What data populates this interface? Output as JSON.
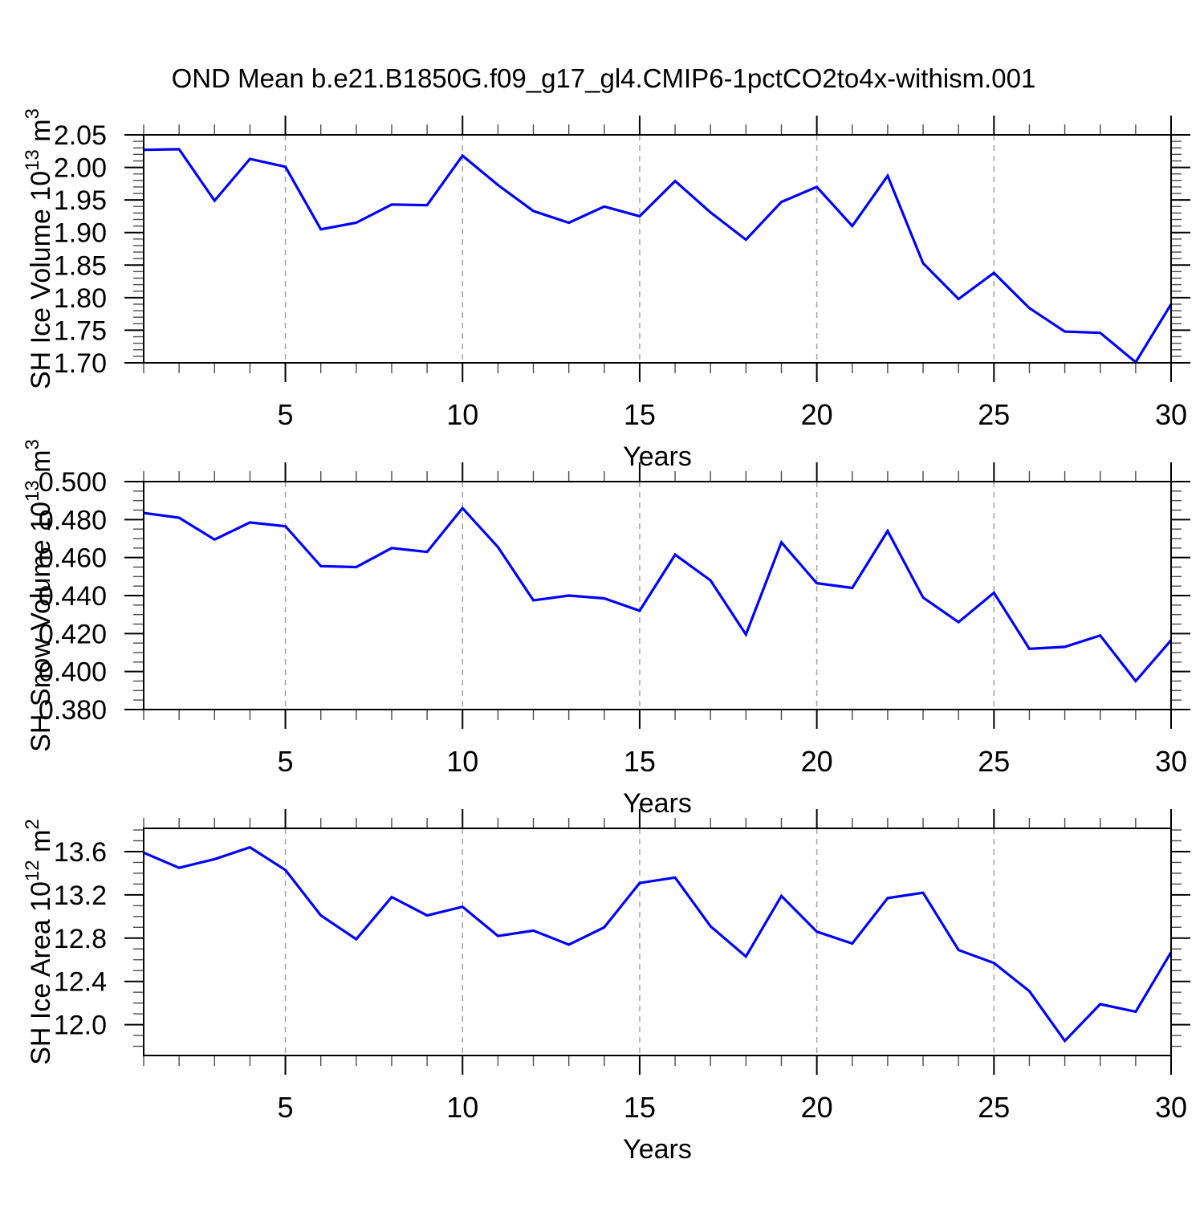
{
  "title": "OND Mean b.e21.B1850G.f09_g17_gl4.CMIP6-1pctCO2to4x-withism.001",
  "line_color": "#0000ff",
  "grid_color": "#a3a3a3",
  "axis_color": "#000000",
  "chart_data": [
    {
      "type": "line",
      "ylabel_parts": [
        {
          "t": "SH Ice Volume 10"
        },
        {
          "t": "13",
          "sup": true
        },
        {
          "t": " m"
        },
        {
          "t": "3",
          "sup": true
        }
      ],
      "xlabel": "Years",
      "xlim": [
        1,
        30
      ],
      "x": {
        "start": 1,
        "end": 30,
        "step": 1
      },
      "xticks_major": [
        5,
        10,
        15,
        20,
        25,
        30
      ],
      "xtick_labels": [
        "5",
        "10",
        "15",
        "20",
        "25",
        "30"
      ],
      "grid_x": [
        5,
        10,
        15,
        20,
        25
      ],
      "ylim": [
        1.7,
        2.05
      ],
      "ytick_values": [
        1.7,
        1.75,
        1.8,
        1.85,
        1.9,
        1.95,
        2.0,
        2.05
      ],
      "ytick_labels": [
        "1.70",
        "1.75",
        "1.80",
        "1.85",
        "1.90",
        "1.95",
        "2.00",
        "2.05"
      ],
      "y_minor_step": 0.01,
      "values": [
        2.027,
        2.028,
        1.949,
        2.013,
        2.001,
        1.905,
        1.915,
        1.943,
        1.942,
        2.018,
        1.973,
        1.933,
        1.915,
        1.94,
        1.925,
        1.979,
        1.931,
        1.889,
        1.947,
        1.97,
        1.91,
        1.987,
        1.853,
        1.798,
        1.838,
        1.784,
        1.748,
        1.746,
        1.701,
        1.79
      ]
    },
    {
      "type": "line",
      "ylabel_parts": [
        {
          "t": "SH Snow Volume 10"
        },
        {
          "t": "13",
          "sup": true
        },
        {
          "t": " m"
        },
        {
          "t": "3",
          "sup": true
        }
      ],
      "xlabel": "Years",
      "xlim": [
        1,
        30
      ],
      "x": {
        "start": 1,
        "end": 30,
        "step": 1
      },
      "xticks_major": [
        5,
        10,
        15,
        20,
        25,
        30
      ],
      "xtick_labels": [
        "5",
        "10",
        "15",
        "20",
        "25",
        "30"
      ],
      "grid_x": [
        5,
        10,
        15,
        20,
        25
      ],
      "ylim": [
        0.38,
        0.5
      ],
      "ytick_values": [
        0.38,
        0.4,
        0.42,
        0.44,
        0.46,
        0.48,
        0.5
      ],
      "ytick_labels": [
        "0.380",
        "0.400",
        "0.420",
        "0.440",
        "0.460",
        "0.480",
        "0.500"
      ],
      "y_minor_step": 0.005,
      "values": [
        0.4835,
        0.481,
        0.4695,
        0.4785,
        0.4765,
        0.4555,
        0.455,
        0.465,
        0.463,
        0.486,
        0.4655,
        0.4375,
        0.44,
        0.4385,
        0.432,
        0.4615,
        0.448,
        0.4195,
        0.468,
        0.4465,
        0.444,
        0.474,
        0.439,
        0.426,
        0.4415,
        0.412,
        0.413,
        0.419,
        0.395,
        0.4165
      ]
    },
    {
      "type": "line",
      "ylabel_parts": [
        {
          "t": "SH Ice Area 10"
        },
        {
          "t": "12",
          "sup": true
        },
        {
          "t": " m"
        },
        {
          "t": "2",
          "sup": true
        }
      ],
      "xlabel": "Years",
      "xlim": [
        1,
        30
      ],
      "x": {
        "start": 1,
        "end": 30,
        "step": 1
      },
      "xticks_major": [
        5,
        10,
        15,
        20,
        25,
        30
      ],
      "xtick_labels": [
        "5",
        "10",
        "15",
        "20",
        "25",
        "30"
      ],
      "grid_x": [
        5,
        10,
        15,
        20,
        25
      ],
      "ylim": [
        11.715,
        13.815
      ],
      "ytick_values": [
        12.0,
        12.4,
        12.8,
        13.2,
        13.6
      ],
      "ytick_labels": [
        "12.0",
        "12.4",
        "12.8",
        "13.2",
        "13.6"
      ],
      "y_minor_step": 0.1,
      "values": [
        13.59,
        13.45,
        13.53,
        13.64,
        13.43,
        13.01,
        12.79,
        13.18,
        13.01,
        13.09,
        12.82,
        12.87,
        12.74,
        12.9,
        13.31,
        13.36,
        12.91,
        12.63,
        13.19,
        12.86,
        12.75,
        13.17,
        13.22,
        12.69,
        12.57,
        12.31,
        11.85,
        12.19,
        12.12,
        12.67
      ]
    }
  ]
}
